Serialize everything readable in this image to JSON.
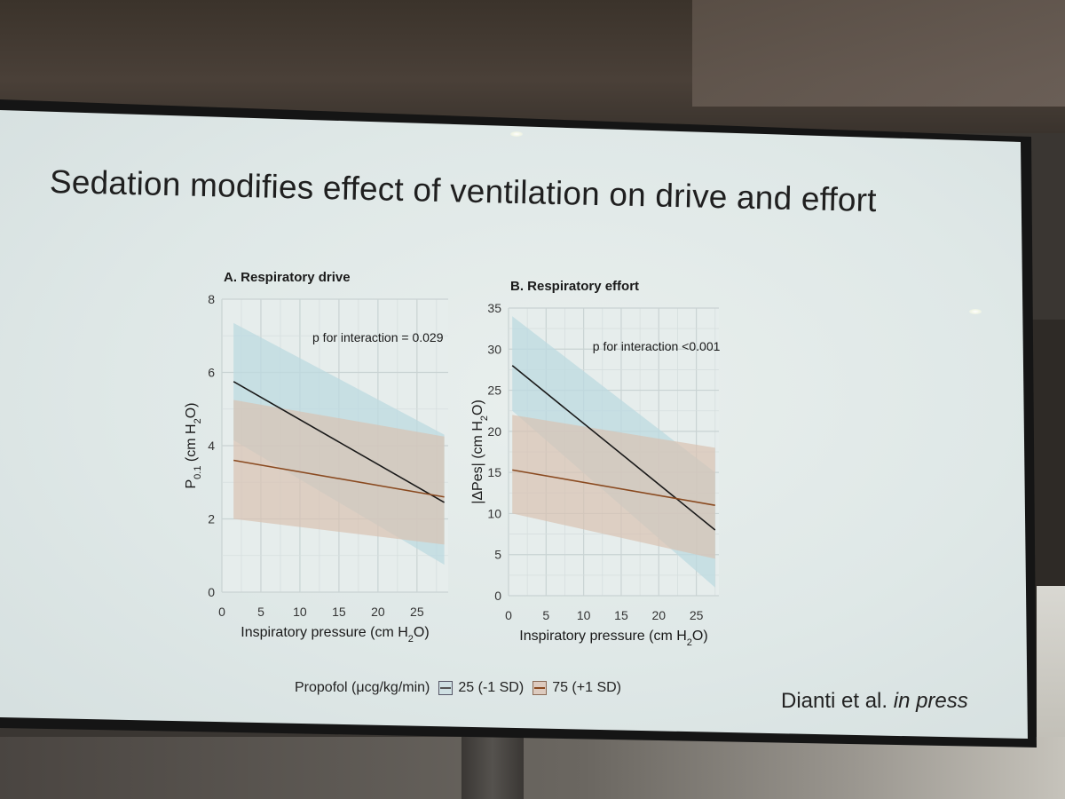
{
  "slide": {
    "title": "Sedation modifies effect of ventilation on drive and effort",
    "citation_authors": "Dianti et al.",
    "citation_status": "in press"
  },
  "legend": {
    "title": "Propofol (μcg/kg/min)",
    "items": [
      {
        "label": "25 (-1 SD)",
        "color": "#1a1a1a",
        "band_color": "#bcd9e0"
      },
      {
        "label": "75 (+1 SD)",
        "color": "#8a4a20",
        "band_color": "#d9c2b2"
      }
    ]
  },
  "chart_data": [
    {
      "type": "line",
      "title": "A. Respiratory drive",
      "xlabel": "Inspiratory pressure (cm H2O)",
      "xlabel_main": "Inspiratory pressure (cm H",
      "xlabel_sub": "2",
      "xlabel_tail": "O)",
      "ylabel_main": "P",
      "ylabel_sub": "0.1",
      "ylabel_tail": " (cm H",
      "ylabel_sub2": "2",
      "ylabel_tail2": "O)",
      "annotation": "p for interaction = 0.029",
      "xlim": [
        0,
        29
      ],
      "ylim": [
        0,
        8
      ],
      "xticks": [
        0,
        5,
        10,
        15,
        20,
        25
      ],
      "xtick_labels": [
        "0",
        "5",
        "10",
        "15",
        "20",
        "25"
      ],
      "yticks": [
        0,
        2,
        4,
        6,
        8
      ],
      "ytick_labels": [
        "0",
        "2",
        "4",
        "6",
        "8"
      ],
      "series": [
        {
          "name": "25 (-1 SD)",
          "x": [
            1.5,
            28.5
          ],
          "y": [
            5.75,
            2.45
          ],
          "band_lower": [
            4.15,
            0.75
          ],
          "band_upper": [
            7.35,
            4.3
          ],
          "color": "#1a1a1a",
          "band_color": "#bcd9e0"
        },
        {
          "name": "75 (+1 SD)",
          "x": [
            1.5,
            28.5
          ],
          "y": [
            3.6,
            2.6
          ],
          "band_lower": [
            2.0,
            1.3
          ],
          "band_upper": [
            5.25,
            4.25
          ],
          "color": "#8a4a20",
          "band_color": "#d9c2b2"
        }
      ]
    },
    {
      "type": "line",
      "title": "B. Respiratory effort",
      "xlabel": "Inspiratory pressure (cm H2O)",
      "xlabel_main": "Inspiratory pressure (cm H",
      "xlabel_sub": "2",
      "xlabel_tail": "O)",
      "ylabel_main": "|ΔPes| (cm H",
      "ylabel_sub": "2",
      "ylabel_tail": "O)",
      "ylabel_sub2": "",
      "ylabel_tail2": "",
      "annotation": "p for interaction <0.001",
      "xlim": [
        0,
        28
      ],
      "ylim": [
        0,
        35
      ],
      "xticks": [
        0,
        5,
        10,
        15,
        20,
        25
      ],
      "xtick_labels": [
        "0",
        "5",
        "10",
        "15",
        "20",
        "25"
      ],
      "yticks": [
        0,
        5,
        10,
        15,
        20,
        25,
        30,
        35
      ],
      "ytick_labels": [
        "0",
        "5",
        "10",
        "15",
        "20",
        "25",
        "30",
        "35"
      ],
      "series": [
        {
          "name": "25 (-1 SD)",
          "x": [
            0.5,
            27.5
          ],
          "y": [
            28,
            8
          ],
          "band_lower": [
            22.5,
            1.0
          ],
          "band_upper": [
            34.0,
            15.0
          ],
          "color": "#1a1a1a",
          "band_color": "#bcd9e0"
        },
        {
          "name": "75 (+1 SD)",
          "x": [
            0.5,
            27.5
          ],
          "y": [
            15.3,
            11.0
          ],
          "band_lower": [
            10.0,
            4.5
          ],
          "band_upper": [
            22.0,
            18.0
          ],
          "color": "#8a4a20",
          "band_color": "#d9c2b2"
        }
      ]
    }
  ]
}
